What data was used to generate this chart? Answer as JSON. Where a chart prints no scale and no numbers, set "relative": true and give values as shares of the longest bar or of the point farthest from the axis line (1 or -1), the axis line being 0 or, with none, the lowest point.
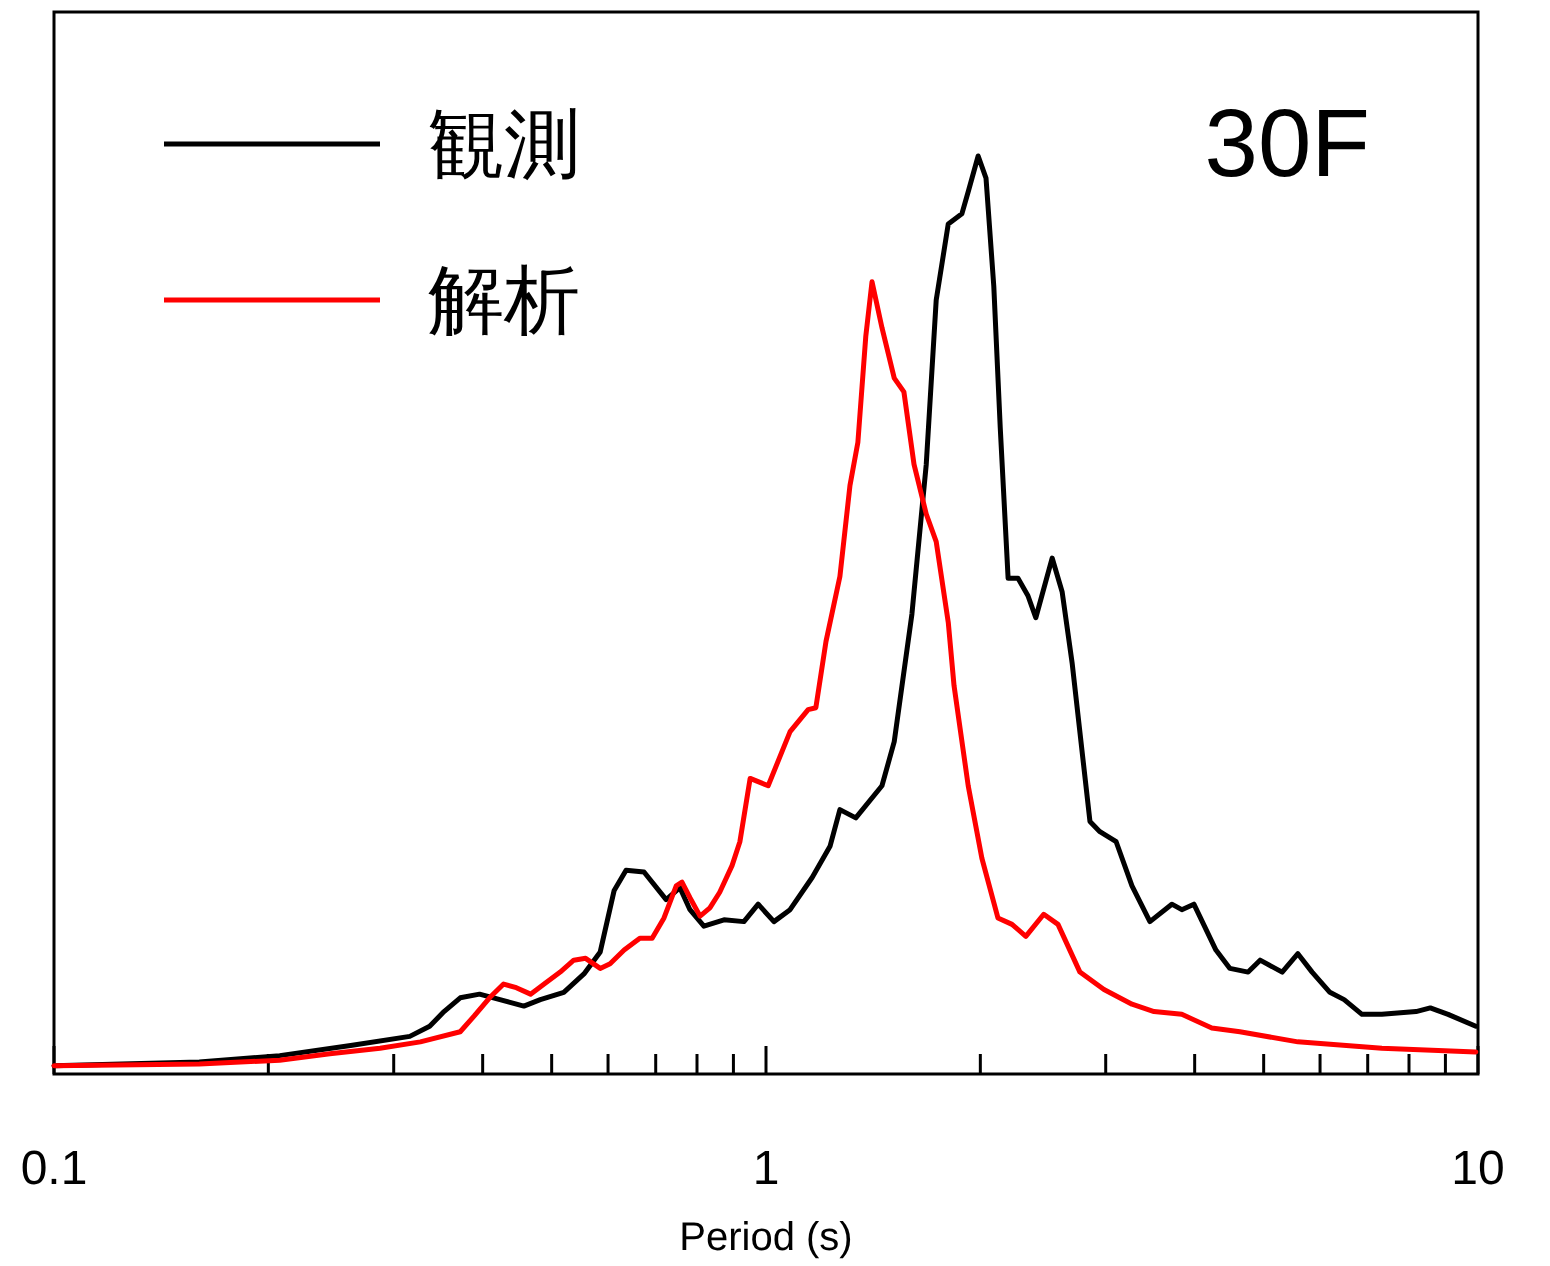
{
  "chart_data": {
    "type": "line",
    "relative": true,
    "log": "x",
    "xlabel": "Period (s)",
    "legend": "top left",
    "annotations": [
      "30F"
    ],
    "xlim": [
      0.1,
      10
    ],
    "xticks": [
      0.1,
      {
        "value": 0.2,
        "label": null
      },
      {
        "value": 0.3,
        "label": null
      },
      {
        "value": 0.4,
        "label": null
      },
      {
        "value": 0.5,
        "label": null
      },
      {
        "value": 0.6,
        "label": null
      },
      {
        "value": 0.7,
        "label": null
      },
      {
        "value": 0.8,
        "label": null
      },
      {
        "value": 0.9,
        "label": null
      },
      1,
      {
        "value": 2,
        "label": null
      },
      {
        "value": 3,
        "label": null
      },
      {
        "value": 4,
        "label": null
      },
      {
        "value": 5,
        "label": null
      },
      {
        "value": 6,
        "label": null
      },
      {
        "value": 7,
        "label": null
      },
      {
        "value": 8,
        "label": null
      },
      {
        "value": 9,
        "label": null
      },
      10
    ],
    "series": [
      {
        "name": "観測",
        "color": "#000000",
        "x": [
          0.1,
          0.16,
          0.2075,
          0.261,
          0.316,
          0.337,
          0.353,
          0.372,
          0.396,
          0.437,
          0.457,
          0.482,
          0.52,
          0.555,
          0.585,
          0.612,
          0.636,
          0.674,
          0.724,
          0.757,
          0.782,
          0.818,
          0.873,
          0.931,
          0.975,
          1.026,
          1.081,
          1.161,
          1.23,
          1.27,
          1.337,
          1.455,
          1.514,
          1.603,
          1.679,
          1.734,
          1.803,
          1.884,
          1.923,
          1.986,
          2.037,
          2.089,
          2.133,
          2.188,
          2.259,
          2.333,
          2.393,
          2.523,
          2.606,
          2.692,
          2.851,
          2.944,
          3.103,
          3.266,
          3.461,
          3.715,
          3.837,
          3.99,
          4.285,
          4.483,
          4.755,
          4.943,
          5.309,
          5.585,
          5.848,
          6.194,
          6.486,
          6.871,
          7.328,
          8.185,
          8.57,
          9.078,
          9.93
        ],
        "values": [
          0.009,
          0.013,
          0.02,
          0.031,
          0.041,
          0.052,
          0.068,
          0.083,
          0.087,
          0.078,
          0.074,
          0.081,
          0.089,
          0.109,
          0.133,
          0.2,
          0.222,
          0.22,
          0.19,
          0.203,
          0.179,
          0.161,
          0.168,
          0.166,
          0.185,
          0.166,
          0.179,
          0.214,
          0.248,
          0.288,
          0.279,
          0.314,
          0.362,
          0.501,
          0.664,
          0.843,
          0.926,
          0.937,
          0.961,
          1,
          0.976,
          0.858,
          0.704,
          0.54,
          0.54,
          0.521,
          0.497,
          0.562,
          0.525,
          0.447,
          0.275,
          0.264,
          0.253,
          0.205,
          0.166,
          0.185,
          0.179,
          0.185,
          0.135,
          0.115,
          0.111,
          0.124,
          0.111,
          0.131,
          0.111,
          0.089,
          0.081,
          0.065,
          0.065,
          0.068,
          0.072,
          0.065,
          0.052
        ]
      },
      {
        "name": "解析",
        "color": "#ff0000",
        "x": [
          0.1,
          0.16,
          0.2075,
          0.244,
          0.287,
          0.327,
          0.372,
          0.389,
          0.409,
          0.428,
          0.446,
          0.467,
          0.488,
          0.514,
          0.537,
          0.558,
          0.585,
          0.604,
          0.632,
          0.665,
          0.692,
          0.719,
          0.748,
          0.762,
          0.782,
          0.808,
          0.834,
          0.861,
          0.896,
          0.919,
          0.95,
          1.007,
          1.081,
          1.146,
          1.175,
          1.214,
          1.27,
          1.312,
          1.346,
          1.381,
          1.409,
          1.455,
          1.514,
          1.562,
          1.614,
          1.679,
          1.734,
          1.803,
          1.837,
          1.923,
          2.01,
          2.117,
          2.216,
          2.317,
          2.455,
          2.571,
          2.76,
          2.983,
          3.266,
          3.507,
          3.837,
          4.228,
          4.63,
          5.585,
          7.328,
          9.93
        ],
        "values": [
          0.009,
          0.011,
          0.015,
          0.022,
          0.028,
          0.035,
          0.046,
          0.063,
          0.083,
          0.098,
          0.094,
          0.087,
          0.098,
          0.111,
          0.124,
          0.126,
          0.115,
          0.12,
          0.135,
          0.148,
          0.148,
          0.17,
          0.205,
          0.209,
          0.192,
          0.172,
          0.181,
          0.198,
          0.227,
          0.253,
          0.322,
          0.314,
          0.373,
          0.397,
          0.399,
          0.471,
          0.542,
          0.641,
          0.688,
          0.804,
          0.863,
          0.813,
          0.758,
          0.743,
          0.664,
          0.61,
          0.58,
          0.492,
          0.423,
          0.314,
          0.235,
          0.17,
          0.163,
          0.15,
          0.174,
          0.163,
          0.111,
          0.092,
          0.076,
          0.068,
          0.065,
          0.05,
          0.046,
          0.035,
          0.028,
          0.024
        ]
      }
    ]
  }
}
